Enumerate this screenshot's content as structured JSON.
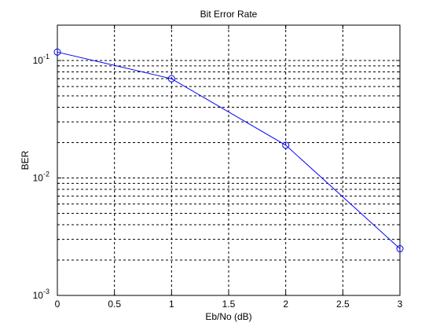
{
  "chart_data": {
    "type": "line",
    "title": "Bit Error Rate",
    "xlabel": "Eb/No (dB)",
    "ylabel": "BER",
    "xlim": [
      0,
      3
    ],
    "ylim": [
      0.001,
      0.2
    ],
    "yscale": "log",
    "grid": true,
    "x_ticks": [
      0,
      0.5,
      1,
      1.5,
      2,
      2.5,
      3
    ],
    "x_tick_labels": [
      "0",
      "0.5",
      "1",
      "1.5",
      "2",
      "2.5",
      "3"
    ],
    "y_ticks": [
      {
        "value": 0.1,
        "base": "10",
        "exponent": "-1"
      },
      {
        "value": 0.01,
        "base": "10",
        "exponent": "-2"
      },
      {
        "value": 0.001,
        "base": "10",
        "exponent": "-3"
      }
    ],
    "series": [
      {
        "color": "#0000ff",
        "marker": "circle",
        "x": [
          0,
          1,
          2,
          3
        ],
        "y": [
          0.118,
          0.07,
          0.019,
          0.0025
        ]
      }
    ]
  }
}
